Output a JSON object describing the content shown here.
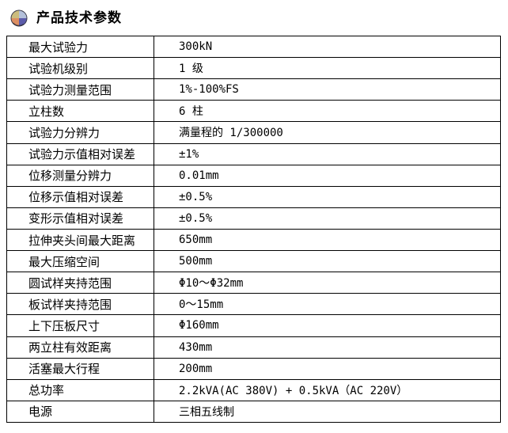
{
  "header": {
    "title": "产品技术参数",
    "icon": "sphere-bullet-icon"
  },
  "table": {
    "rows": [
      {
        "label": "最大试验力",
        "value": "300kN"
      },
      {
        "label": "试验机级别",
        "value": "1 级"
      },
      {
        "label": "试验力测量范围",
        "value": "1%-100%FS"
      },
      {
        "label": "立柱数",
        "value": "6 柱"
      },
      {
        "label": "试验力分辨力",
        "value": "满量程的 1/300000"
      },
      {
        "label": "试验力示值相对误差",
        "value": "±1%"
      },
      {
        "label": "位移测量分辨力",
        "value": "0.01mm"
      },
      {
        "label": "位移示值相对误差",
        "value": "±0.5%"
      },
      {
        "label": "变形示值相对误差",
        "value": "±0.5%"
      },
      {
        "label": "拉伸夹头间最大距离",
        "value": "650mm"
      },
      {
        "label": "最大压缩空间",
        "value": "500mm"
      },
      {
        "label": "圆试样夹持范围",
        "value": "Φ10～Φ32mm"
      },
      {
        "label": "板试样夹持范围",
        "value": "0～15mm"
      },
      {
        "label": "上下压板尺寸",
        "value": "Φ160mm"
      },
      {
        "label": "两立柱有效距离",
        "value": "430mm"
      },
      {
        "label": "活塞最大行程",
        "value": "200mm"
      },
      {
        "label": "总功率",
        "value": "2.2kVA(AC 380V) + 0.5kVA（AC 220V）"
      },
      {
        "label": "电源",
        "value": "三相五线制"
      }
    ]
  },
  "colors": {
    "background": "#ffffff",
    "table_border": "#000000",
    "text": "#000000",
    "icon_quadrant_top_left": "#cbbc7e",
    "icon_quadrant_top_right": "#b3c0da",
    "icon_quadrant_bottom_left": "#dd8f62",
    "icon_quadrant_bottom_right": "#5b5baa",
    "icon_outline": "#3a3a4a"
  }
}
